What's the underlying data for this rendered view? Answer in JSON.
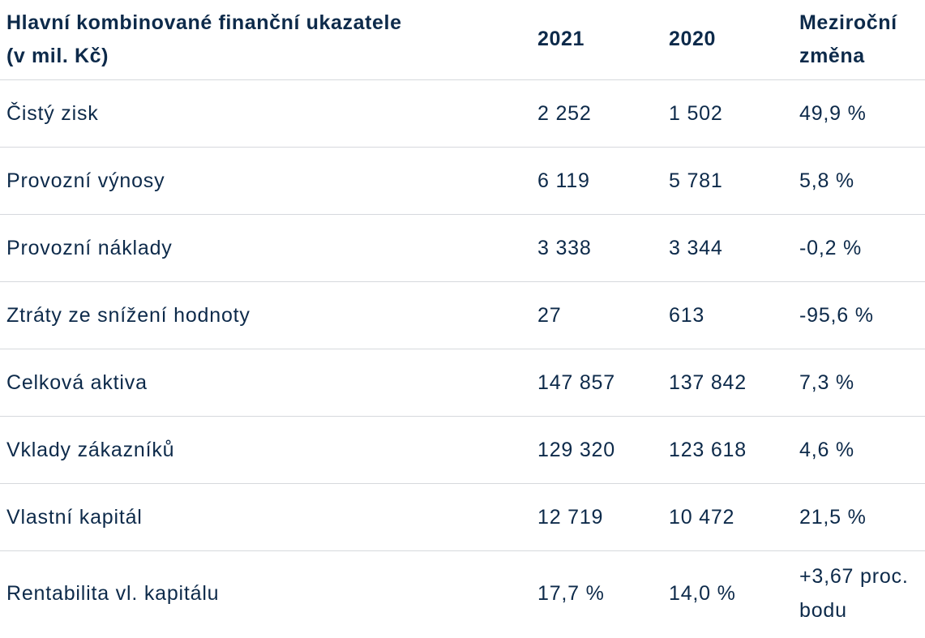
{
  "table": {
    "headers": {
      "label_line1": "Hlavní kombinované finanční ukazatele",
      "label_line2": "(v mil. Kč)",
      "year_2021": "2021",
      "year_2020": "2020",
      "change_line1": "Meziroční",
      "change_line2": "změna"
    },
    "rows": [
      {
        "label": "Čistý zisk",
        "v2021": "2 252",
        "v2020": "1 502",
        "change": "49,9 %"
      },
      {
        "label": "Provozní výnosy",
        "v2021": "6 119",
        "v2020": "5 781",
        "change": "5,8 %"
      },
      {
        "label": "Provozní náklady",
        "v2021": "3 338",
        "v2020": "3 344",
        "change": "-0,2 %"
      },
      {
        "label": "Ztráty ze snížení hodnoty",
        "v2021": "27",
        "v2020": "613",
        "change": "-95,6 %"
      },
      {
        "label": "Celková aktiva",
        "v2021": "147 857",
        "v2020": "137 842",
        "change": "7,3 %"
      },
      {
        "label": "Vklady zákazníků",
        "v2021": "129 320",
        "v2020": "123 618",
        "change": "4,6 %"
      },
      {
        "label": "Vlastní kapitál",
        "v2021": "12 719",
        "v2020": "10 472",
        "change": "21,5 %"
      },
      {
        "label": "Rentabilita vl. kapitálu",
        "v2021": "17,7 %",
        "v2020": "14,0 %",
        "change_line1": "+3,67 proc.",
        "change_line2": "bodu"
      }
    ]
  }
}
